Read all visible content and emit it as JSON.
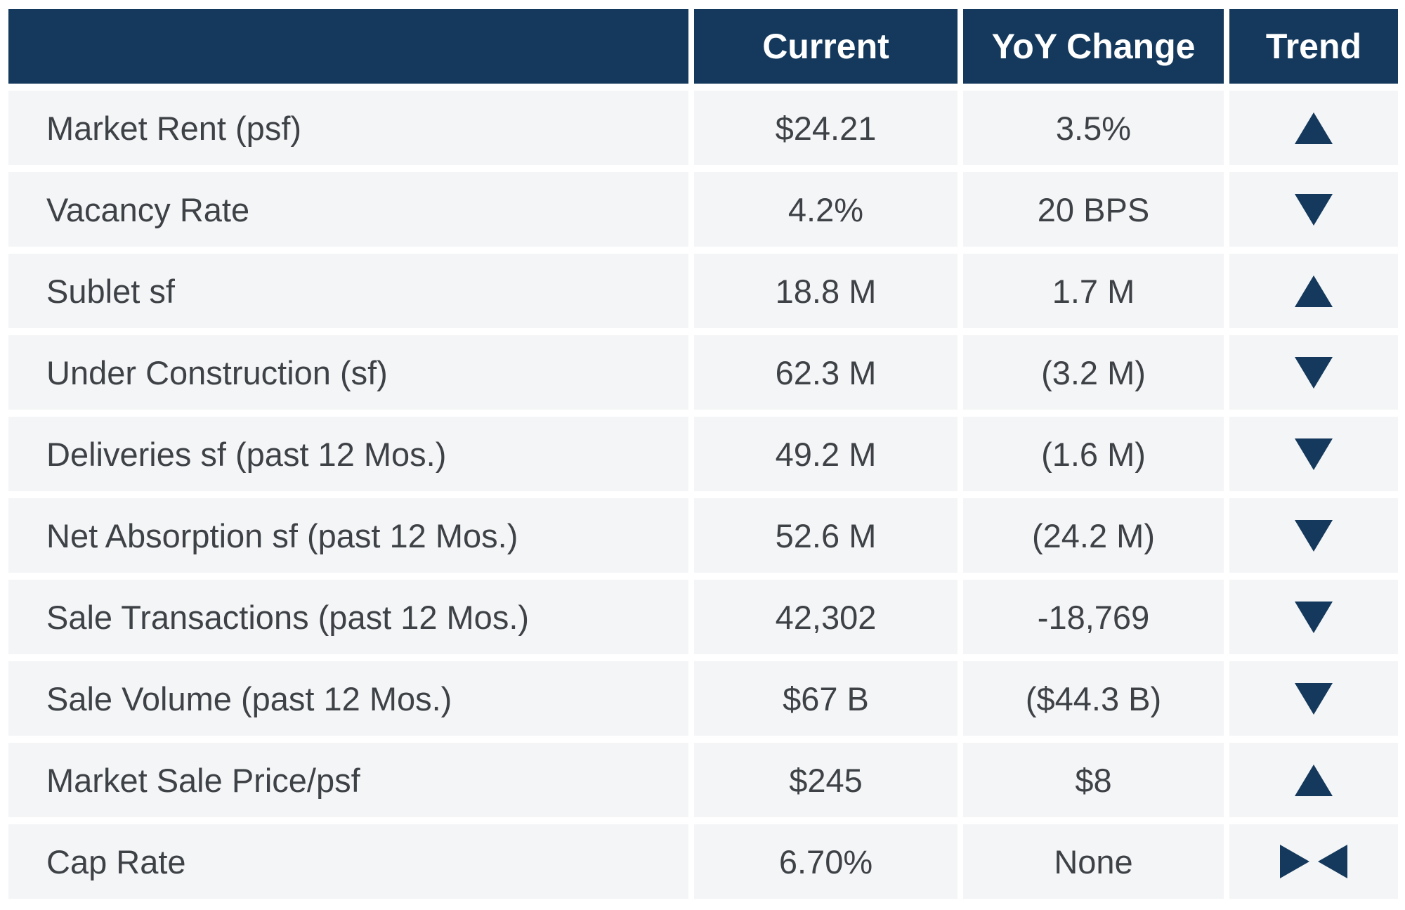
{
  "colors": {
    "navy": "#14395c",
    "row_bg": "#f4f5f6",
    "body_text": "#3e4247",
    "header_text": "#ffffff"
  },
  "chart_data": {
    "type": "table",
    "columns": [
      "",
      "Current",
      "YoY Change",
      "Trend"
    ],
    "rows": [
      {
        "label": "Market Rent (psf)",
        "current": "$24.21",
        "yoy": "3.5%",
        "trend": "up"
      },
      {
        "label": "Vacancy Rate",
        "current": "4.2%",
        "yoy": "20 BPS",
        "trend": "down"
      },
      {
        "label": "Sublet sf",
        "current": "18.8 M",
        "yoy": "1.7 M",
        "trend": "up"
      },
      {
        "label": "Under Construction (sf)",
        "current": "62.3 M",
        "yoy": "(3.2 M)",
        "trend": "down"
      },
      {
        "label": "Deliveries sf (past 12 Mos.)",
        "current": "49.2 M",
        "yoy": "(1.6 M)",
        "trend": "down"
      },
      {
        "label": "Net Absorption sf (past 12 Mos.)",
        "current": "52.6 M",
        "yoy": "(24.2 M)",
        "trend": "down"
      },
      {
        "label": "Sale Transactions (past 12 Mos.)",
        "current": "42,302",
        "yoy": "-18,769",
        "trend": "down"
      },
      {
        "label": "Sale Volume (past 12 Mos.)",
        "current": "$67 B",
        "yoy": "($44.3 B)",
        "trend": "down"
      },
      {
        "label": "Market Sale Price/psf",
        "current": "$245",
        "yoy": "$8",
        "trend": "up"
      },
      {
        "label": "Cap Rate",
        "current": "6.70%",
        "yoy": "None",
        "trend": "flat"
      }
    ]
  }
}
